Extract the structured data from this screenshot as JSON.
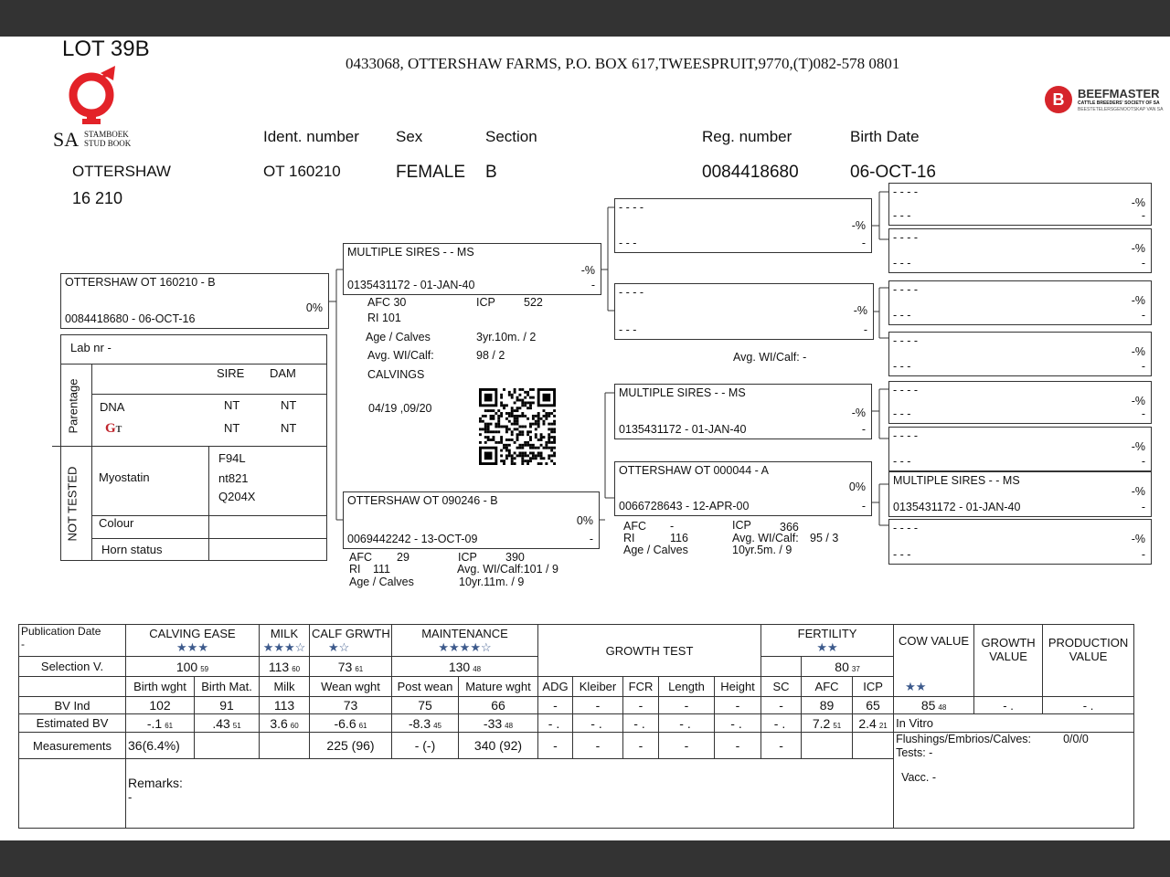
{
  "header": {
    "lot": "LOT 39B",
    "address": "0433068,  OTTERSHAW FARMS, P.O. BOX 617,TWEESPRUIT,9770,(T)082-578 0801",
    "logo_sa": {
      "big": "SA",
      "line1": "STAMBOEK",
      "line2": "STUD BOOK"
    },
    "logo_beefmaster": {
      "name": "BEEFMASTER",
      "line1": "CATTLE BREEDERS' SOCIETY OF SA",
      "line2": "BEESTETELERSGENOOTSKAP VAN SA",
      "color": "#d6252b"
    },
    "labels": {
      "ident": "Ident. number",
      "sex": "Sex",
      "section": "Section",
      "reg": "Reg. number",
      "birth": "Birth Date"
    },
    "values": {
      "herd": "OTTERSHAW",
      "herd_no": "16 210",
      "ident": "OT  160210",
      "sex": "FEMALE",
      "section": "B",
      "reg": "0084418680",
      "birth": "06-OCT-16"
    }
  },
  "pedigree": {
    "animal": {
      "name": "OTTERSHAW OT  160210 - B",
      "pct": "0%",
      "reg": "0084418680 -  06-OCT-16",
      "dash": ""
    },
    "sire": {
      "name": "MULTIPLE SIRES - - MS",
      "pct": "-%",
      "reg": "0135431172 - 01-JAN-40",
      "dash": "-"
    },
    "dam": {
      "name": "OTTERSHAW OT  090246 - B",
      "pct": "0%",
      "reg": "0069442242 - 13-OCT-09",
      "dash": "-"
    },
    "ss": {
      "name": "- - - -",
      "pct": "-%",
      "reg": "- - -",
      "dash": "-"
    },
    "sd": {
      "name": "- - - -",
      "pct": "-%",
      "reg": "- - -",
      "dash": "-"
    },
    "ds": {
      "name": "MULTIPLE SIRES - - MS",
      "pct": "-%",
      "reg": "0135431172 - 01-JAN-40",
      "dash": "-"
    },
    "dd": {
      "name": "OTTERSHAW OT  000044 - A",
      "pct": "0%",
      "reg": "0066728643 - 12-APR-00",
      "dash": "-"
    },
    "g4": [
      {
        "name": "- - - -",
        "pct": "-%",
        "reg": "- - -",
        "dash": "-"
      },
      {
        "name": "- - - -",
        "pct": "-%",
        "reg": "- - -",
        "dash": "-"
      },
      {
        "name": "- - - -",
        "pct": "-%",
        "reg": "- - -",
        "dash": "-"
      },
      {
        "name": "- - - -",
        "pct": "-%",
        "reg": "- - -",
        "dash": "-"
      },
      {
        "name": "- - - -",
        "pct": "-%",
        "reg": "- - -",
        "dash": "-"
      },
      {
        "name": "- - - -",
        "pct": "-%",
        "reg": "- - -",
        "dash": "-"
      },
      {
        "name": "MULTIPLE SIRES - - MS",
        "pct": "-%",
        "reg": "0135431172 - 01-JAN-40",
        "dash": "-"
      },
      {
        "name": "- - - -",
        "pct": "-%",
        "reg": "- - -",
        "dash": "-"
      }
    ],
    "sire_stats": {
      "afc": "AFC 30",
      "icp_l": "ICP",
      "icp": "522",
      "ri": "RI  101",
      "age_l": "Age / Calves",
      "age": "3yr.10m. / 2",
      "wi_l": "Avg. WI/Calf:",
      "wi": "98 / 2",
      "calvings": "CALVINGS",
      "calving_dates": "04/19 ,09/20"
    },
    "dam_stats": {
      "afc_l": "AFC",
      "afc": "29",
      "icp_l": "ICP",
      "icp": "390",
      "ri_l": "RI",
      "ri": "111",
      "wi": "Avg. WI/Calf:101 / 9",
      "age_l": "Age / Calves",
      "age": "10yr.11m. / 9"
    },
    "sd_stats": {
      "wi": "Avg. WI/Calf:  -"
    },
    "dd_stats": {
      "afc_l": "AFC",
      "afc": "-",
      "icp_l": "ICP",
      "icp": "366",
      "ri_l": "RI",
      "ri": "116",
      "wi_l": "Avg. WI/Calf:",
      "wi": "95 / 3",
      "age_l": "Age / Calves",
      "age": "10yr.5m. / 9"
    }
  },
  "info": {
    "lab_nr": "Lab nr  -",
    "parentage": "Parentage",
    "not_tested": "NOT TESTED",
    "sire": "SIRE",
    "dam": "DAM",
    "dna": "DNA",
    "dna_sire": "NT",
    "dna_dam": "NT",
    "gt_logo": "GT",
    "gt_sire": "NT",
    "gt_dam": "NT",
    "myostatin": "Myostatin",
    "myo_vals": [
      "F94L",
      "nt821",
      "Q204X"
    ],
    "colour": "Colour",
    "horn": "Horn status"
  },
  "ev": {
    "star_color": "#3d5a8c",
    "pub_date_label": "Publication Date",
    "pub_date": "-",
    "calving_ease": {
      "label": "CALVING EASE",
      "stars": "★★★"
    },
    "milk": {
      "label": "MILK",
      "stars": "★★★☆"
    },
    "calf_growth": {
      "label": "CALF GRWTH.",
      "stars": "★☆"
    },
    "maintenance": {
      "label": "MAINTENANCE",
      "stars": "★★★★☆"
    },
    "growth_test": "GROWTH TEST",
    "fertility": {
      "label": "FERTILITY",
      "stars": "★★"
    },
    "cow_value": {
      "label": "COW VALUE",
      "stars": "★★"
    },
    "growth_value": "GROWTH VALUE",
    "production_value": "PRODUCTION VALUE",
    "selection": {
      "label": "Selection V.",
      "calving_ease": {
        "v": "100",
        "s": "59"
      },
      "milk": {
        "v": "113",
        "s": "60"
      },
      "calf_growth": {
        "v": "73",
        "s": "61"
      },
      "maintenance": {
        "v": "130",
        "s": "48"
      },
      "fertility": {
        "v": "80",
        "s": "37"
      }
    },
    "columns": [
      "Birth wght",
      "Birth Mat.",
      "Milk",
      "Wean wght",
      "Post wean",
      "Mature wght",
      "ADG",
      "Kleiber",
      "FCR",
      "Length",
      "Height",
      "SC",
      "AFC",
      "ICP"
    ],
    "bv_ind": {
      "label": "BV Ind",
      "values": [
        "102",
        "91",
        "113",
        "73",
        "75",
        "66",
        "-",
        "-",
        "-",
        "-",
        "-",
        "-",
        "89",
        "65"
      ],
      "cow_value": {
        "v": "85",
        "s": "48"
      },
      "growth_value": "- .",
      "production_value": "- ."
    },
    "est_bv": {
      "label": "Estimated BV",
      "values": [
        {
          "v": "-.1",
          "s": "61"
        },
        {
          "v": ".43",
          "s": "51"
        },
        {
          "v": "3.6",
          "s": "60"
        },
        {
          "v": "-6.6",
          "s": "61"
        },
        {
          "v": "-8.3",
          "s": "45"
        },
        {
          "v": "-33",
          "s": "48"
        },
        {
          "v": "- .",
          "s": ""
        },
        {
          "v": "- .",
          "s": ""
        },
        {
          "v": "- .",
          "s": ""
        },
        {
          "v": "- .",
          "s": ""
        },
        {
          "v": "- .",
          "s": ""
        },
        {
          "v": "- .",
          "s": ""
        },
        {
          "v": "7.2",
          "s": "51"
        },
        {
          "v": "2.4",
          "s": "21"
        }
      ],
      "in_vitro": "In Vitro"
    },
    "measurements": {
      "label": "Measurements",
      "values": [
        "36(6.4%)",
        "",
        "",
        "225  (96)",
        "-  (-)",
        "340  (92)",
        "-",
        "-",
        "-",
        "-",
        "-",
        "-",
        "",
        ""
      ]
    },
    "flushings_label": "Flushings/Embrios/Calves:",
    "flushings": "0/0/0",
    "tests": "Tests: -",
    "vacc": "Vacc. -",
    "remarks_label": "Remarks:",
    "remarks": "-"
  }
}
